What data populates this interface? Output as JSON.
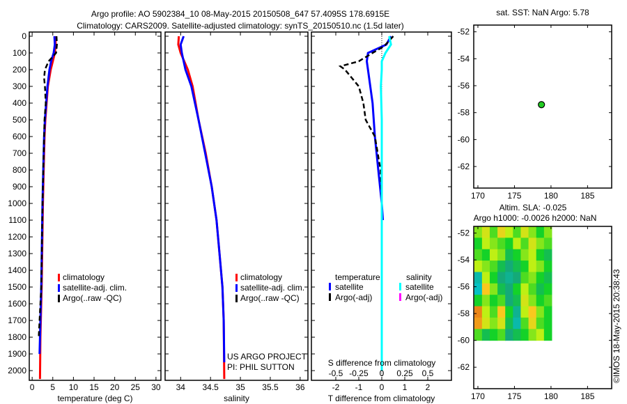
{
  "title": {
    "line1": "Argo profile: AO 5902384_10 08-May-2015 20150508_647 57.4095S 178.6915E",
    "line2": "Climatology: CARS2009. Satellite-adjusted climatology: synTS_20150510.nc (1.5d later)"
  },
  "credit": "©IMOS 18-May-2015 20:38:43",
  "colors": {
    "clim": "#ff0000",
    "sat": "#0000ff",
    "argo": "#000000",
    "sal_sat": "#00ffff",
    "sal_argo": "#ff00ff",
    "point": "#22cc22"
  },
  "chart_data": [
    {
      "type": "line",
      "id": "temperature",
      "xlabel": "temperature (deg C)",
      "ylabel": "",
      "xlim": [
        -0.7,
        31.2
      ],
      "ylim": [
        2058,
        -25
      ],
      "xticks": [
        0,
        5,
        10,
        15,
        20,
        25,
        30
      ],
      "yticks": [
        0,
        100,
        200,
        300,
        400,
        500,
        600,
        700,
        800,
        900,
        1000,
        1100,
        1200,
        1300,
        1400,
        1500,
        1600,
        1700,
        1800,
        1900,
        2000
      ],
      "legend": {
        "placement": "bottom-center",
        "entries": [
          "climatology",
          "satellite-adj. clim.",
          "Argo(..raw -QC)"
        ]
      },
      "series": [
        {
          "name": "climatology",
          "color": "#ff0000",
          "depth": [
            0,
            50,
            100,
            150,
            200,
            300,
            400,
            500,
            600,
            800,
            1000,
            1500,
            1800,
            2050
          ],
          "values": [
            5.6,
            5.7,
            5.5,
            5.0,
            4.5,
            3.8,
            3.5,
            3.2,
            3.0,
            2.8,
            2.6,
            2.3,
            2.0,
            1.9
          ]
        },
        {
          "name": "satellite-adj. clim.",
          "color": "#0000ff",
          "depth": [
            0,
            50,
            100,
            150,
            200,
            300,
            400,
            500,
            600,
            800,
            1000,
            1500,
            1900
          ],
          "values": [
            5.4,
            5.5,
            5.2,
            4.6,
            4.2,
            3.7,
            3.4,
            3.1,
            2.9,
            2.7,
            2.5,
            2.2,
            1.8
          ]
        },
        {
          "name": "Argo(..raw -QC)",
          "color": "#000000",
          "dashed": true,
          "depth": [
            0,
            50,
            100,
            150,
            200,
            250,
            300,
            400,
            500,
            600,
            800,
            1000,
            1500,
            1800
          ],
          "values": [
            5.9,
            6.0,
            5.8,
            4.0,
            3.1,
            2.9,
            3.1,
            3.3,
            3.0,
            2.9,
            2.7,
            2.5,
            2.2,
            1.6
          ]
        }
      ]
    },
    {
      "type": "line",
      "id": "salinity",
      "xlabel": "salinity",
      "xlim": [
        33.74,
        36.13
      ],
      "ylim": [
        2058,
        -25
      ],
      "xticks": [
        34,
        34.5,
        35,
        35.5,
        36
      ],
      "legend": {
        "placement": "bottom-center",
        "entries": [
          "climatology",
          "satellite-adj. clim.",
          "Argo(..raw -QC)"
        ]
      },
      "annotation": [
        "US ARGO PROJECT",
        "PI: PHIL SUTTON"
      ],
      "series": [
        {
          "name": "climatology",
          "color": "#ff0000",
          "depth": [
            0,
            50,
            100,
            200,
            300,
            500,
            700,
            900,
            1100,
            1300,
            1500,
            1700,
            2050
          ],
          "values": [
            33.97,
            33.96,
            34.0,
            34.12,
            34.2,
            34.3,
            34.42,
            34.52,
            34.6,
            34.65,
            34.7,
            34.72,
            34.73
          ]
        },
        {
          "name": "satellite-adj. clim.",
          "color": "#0000ff",
          "depth": [
            0,
            50,
            100,
            200,
            300,
            500,
            700,
            900,
            1100,
            1300,
            1500,
            1700,
            1950
          ],
          "values": [
            34.05,
            34.0,
            34.02,
            34.08,
            34.18,
            34.3,
            34.41,
            34.52,
            34.6,
            34.65,
            34.7,
            34.72,
            34.73
          ]
        }
      ]
    },
    {
      "type": "line",
      "id": "difference",
      "xlabel": "T difference from climatology",
      "x2label": "S difference from climatology",
      "xlim": [
        -3.06,
        3.03
      ],
      "ylim": [
        2058,
        -25
      ],
      "xticks": [
        -2,
        -1,
        0,
        1,
        2
      ],
      "x2ticks": [
        "-0.5",
        "-0.25",
        "0",
        "0.25",
        "0.5"
      ],
      "x2scale": 0.25,
      "legend": {
        "placement": "bottom-center",
        "temperature_header": "temperature",
        "salinity_header": "salinity",
        "entries": [
          "satellite",
          "Argo(-adj)",
          "satellite",
          "Argo(-adj)"
        ]
      },
      "series": [
        {
          "name": "T satellite",
          "color": "#0000ff",
          "depth": [
            0,
            50,
            100,
            150,
            200,
            300,
            400,
            600,
            800,
            1000,
            1100
          ],
          "values": [
            0.4,
            0.2,
            -0.6,
            -0.65,
            -0.6,
            -0.5,
            -0.4,
            -0.3,
            -0.15,
            0.0,
            0.05
          ]
        },
        {
          "name": "T Argo(-adj)",
          "color": "#000000",
          "dashed": true,
          "depth": [
            0,
            30,
            60,
            100,
            150,
            180,
            200,
            250,
            300,
            400,
            500,
            600,
            800,
            1000,
            1800
          ],
          "values": [
            0.5,
            0.3,
            0.1,
            -0.4,
            -1.0,
            -1.8,
            -1.6,
            -1.3,
            -1.0,
            -0.8,
            -0.7,
            -0.3,
            -0.05,
            0.0,
            0.0
          ]
        },
        {
          "name": "S satellite",
          "color": "#00ffff",
          "scale": "S",
          "depth": [
            0,
            50,
            100,
            150,
            200,
            300,
            500,
            800,
            1000,
            2000
          ],
          "values": [
            0.08,
            0.1,
            0.04,
            0.0,
            0.0,
            -0.01,
            0.0,
            0.0,
            0.0,
            0.0
          ]
        }
      ]
    },
    {
      "type": "scatter",
      "id": "sst-map",
      "title": "sat. SST: NaN Argo: 5.78",
      "xlim": [
        169.43,
        188.3
      ],
      "ylim": [
        -63.6,
        -51.5
      ],
      "xticks": [
        170,
        175,
        180,
        185
      ],
      "yticks": [
        -52,
        -54,
        -56,
        -58,
        -60,
        -62
      ],
      "points": [
        {
          "x": 178.6915,
          "y": -57.4095
        }
      ]
    },
    {
      "type": "heatmap",
      "id": "sla-map",
      "title": "Altim. SLA: -0.025",
      "subtitle": "Argo h1000: -0.0026 h2000: NaN",
      "xlim": [
        169.43,
        188.3
      ],
      "ylim": [
        -63.6,
        -51.5
      ],
      "xticks": [
        170,
        175,
        180,
        185
      ],
      "yticks": [
        -52,
        -54,
        -56,
        -58,
        -60,
        -62
      ],
      "extent": {
        "x": [
          169.5,
          180.1
        ],
        "y": [
          -60.0,
          -51.5
        ]
      },
      "grid": [
        [
          0.2,
          0.4,
          0.1,
          0.5,
          0.3,
          0.1,
          0.4,
          0.2,
          0.0,
          0.2
        ],
        [
          0.0,
          0.3,
          0.2,
          0.1,
          0.0,
          0.3,
          0.1,
          0.4,
          0.2,
          0.1
        ],
        [
          0.1,
          0.0,
          0.3,
          0.2,
          -0.1,
          0.0,
          0.2,
          0.3,
          0.0,
          -0.1
        ],
        [
          0.3,
          0.2,
          0.1,
          -0.1,
          -0.2,
          -0.1,
          0.0,
          0.3,
          0.2,
          0.0
        ],
        [
          -0.4,
          0.3,
          0.0,
          -0.2,
          -0.3,
          -0.2,
          0.1,
          0.2,
          0.0,
          -0.1
        ],
        [
          -0.5,
          0.6,
          0.2,
          -0.1,
          -0.2,
          0.0,
          0.3,
          0.1,
          -0.1,
          0.0
        ],
        [
          0.0,
          0.2,
          0.0,
          0.1,
          -0.2,
          -0.1,
          0.4,
          0.2,
          0.0,
          0.1
        ],
        [
          0.9,
          0.3,
          0.1,
          0.6,
          0.0,
          -0.3,
          0.3,
          0.6,
          0.2,
          0.0
        ],
        [
          0.8,
          0.4,
          0.2,
          0.4,
          -0.1,
          -0.4,
          0.1,
          0.5,
          0.1,
          0.0
        ],
        [
          0.1,
          -0.1,
          0.0,
          0.1,
          -0.2,
          -0.1,
          0.0,
          0.2,
          0.3,
          0.0
        ]
      ]
    }
  ]
}
